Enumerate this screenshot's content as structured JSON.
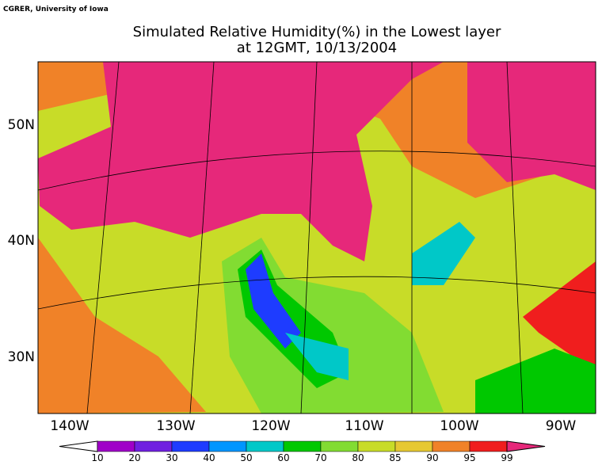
{
  "credit": "CGRER, University of Iowa",
  "title": [
    "Simulated Relative Humidity(%) in the Lowest layer",
    "at 12GMT, 10/13/2004"
  ],
  "lat_labels": [
    "50N",
    "40N",
    "30N"
  ],
  "lon_labels": [
    "140W",
    "130W",
    "120W",
    "110W",
    "100W",
    "90W"
  ],
  "colorbar": {
    "levels": [
      10,
      20,
      30,
      40,
      50,
      60,
      70,
      80,
      85,
      90,
      95,
      99
    ],
    "colors": [
      "#a000c8",
      "#7020e0",
      "#1e3cff",
      "#0096ff",
      "#00c8c8",
      "#00c800",
      "#82dc32",
      "#c8dc28",
      "#e6c832",
      "#f08228",
      "#f01e1e"
    ],
    "under_color": "#ffffff",
    "over_color": "#e6287a"
  }
}
